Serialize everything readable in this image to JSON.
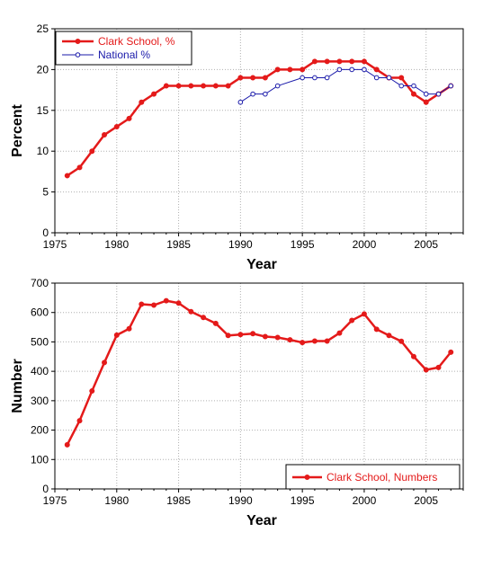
{
  "chart_data": [
    {
      "type": "line",
      "xlabel": "Year",
      "ylabel": "Percent",
      "xlim": [
        1975,
        2008
      ],
      "ylim": [
        0,
        25
      ],
      "x_ticks": [
        1975,
        1980,
        1985,
        1990,
        1995,
        2000,
        2005
      ],
      "y_ticks": [
        0,
        5,
        10,
        15,
        20,
        25
      ],
      "grid": true,
      "legend_position": "top-left",
      "series": [
        {
          "name": "Clark School, %",
          "color": "#e41a1a",
          "marker": "filled-circle",
          "x": [
            1976,
            1977,
            1978,
            1979,
            1980,
            1981,
            1982,
            1983,
            1984,
            1985,
            1986,
            1987,
            1988,
            1989,
            1990,
            1991,
            1992,
            1993,
            1994,
            1995,
            1996,
            1997,
            1998,
            1999,
            2000,
            2001,
            2002,
            2003,
            2004,
            2005,
            2006,
            2007
          ],
          "y": [
            7,
            8,
            10,
            12,
            13,
            14,
            16,
            17,
            18,
            18,
            18,
            18,
            18,
            18,
            19,
            19,
            19,
            20,
            20,
            20,
            21,
            21,
            21,
            21,
            21,
            20,
            19,
            19,
            17,
            16,
            17,
            18
          ]
        },
        {
          "name": "National %",
          "color": "#1a1aaa",
          "marker": "open-circle",
          "x": [
            1990,
            1991,
            1992,
            1993,
            1995,
            1996,
            1997,
            1998,
            1999,
            2000,
            2001,
            2002,
            2003,
            2004,
            2005,
            2006,
            2007
          ],
          "y": [
            16,
            17,
            17,
            18,
            19,
            19,
            19,
            20,
            20,
            20,
            19,
            19,
            18,
            18,
            17,
            17,
            18
          ]
        }
      ]
    },
    {
      "type": "line",
      "xlabel": "Year",
      "ylabel": "Number",
      "xlim": [
        1975,
        2008
      ],
      "ylim": [
        0,
        700
      ],
      "x_ticks": [
        1975,
        1980,
        1985,
        1990,
        1995,
        2000,
        2005
      ],
      "y_ticks": [
        0,
        100,
        200,
        300,
        400,
        500,
        600,
        700
      ],
      "grid": true,
      "legend_position": "bottom-right",
      "series": [
        {
          "name": "Clark School, Numbers",
          "color": "#e41a1a",
          "marker": "filled-circle",
          "x": [
            1976,
            1977,
            1978,
            1979,
            1980,
            1981,
            1982,
            1983,
            1984,
            1985,
            1986,
            1987,
            1988,
            1989,
            1990,
            1991,
            1992,
            1993,
            1994,
            1995,
            1996,
            1997,
            1998,
            1999,
            2000,
            2001,
            2002,
            2003,
            2004,
            2005,
            2006,
            2007
          ],
          "y": [
            150,
            232,
            333,
            430,
            523,
            545,
            628,
            625,
            640,
            632,
            603,
            583,
            563,
            522,
            525,
            528,
            518,
            515,
            507,
            498,
            503,
            503,
            530,
            573,
            595,
            543,
            522,
            502,
            450,
            405,
            413,
            465
          ]
        }
      ]
    }
  ]
}
